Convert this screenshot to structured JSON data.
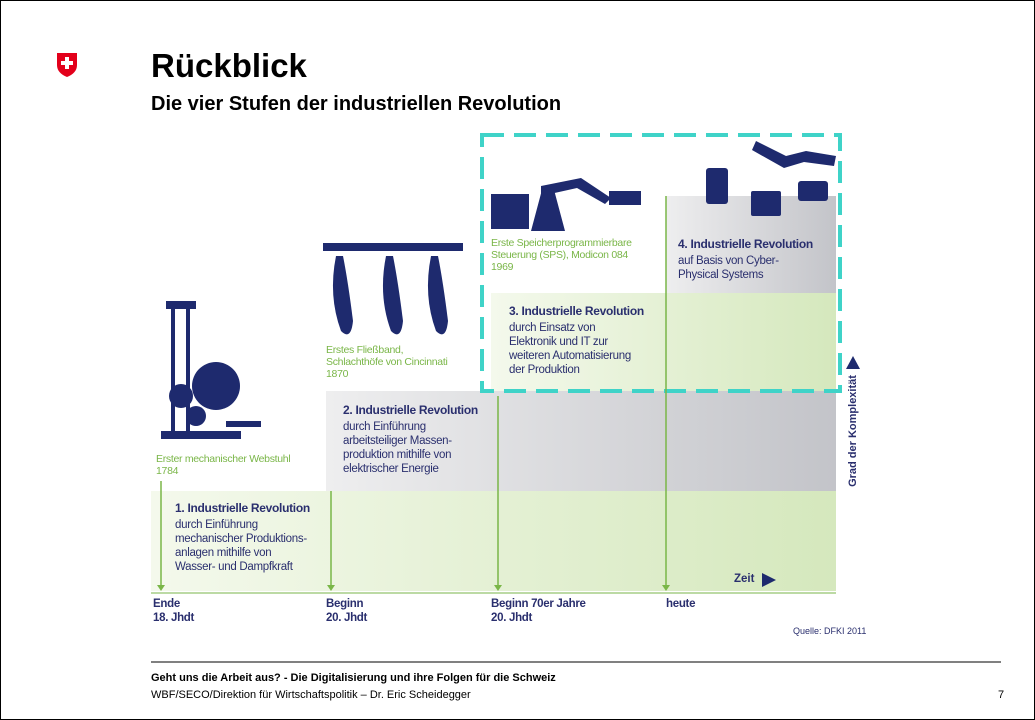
{
  "header": {
    "title": "Rückblick",
    "subtitle": "Die vier Stufen der industriellen Revolution"
  },
  "stages": [
    {
      "heading": "1. Industrielle Revolution",
      "description": [
        "durch Einführung",
        "mechanischer Produktions-",
        "anlagen mithilfe von",
        "Wasser- und Dampfkraft"
      ],
      "invention": [
        "Erster mechanischer Webstuhl",
        "1784"
      ],
      "era": [
        "Ende",
        "18. Jhdt"
      ]
    },
    {
      "heading": "2. Industrielle Revolution",
      "description": [
        "durch Einführung",
        "arbeitsteiliger Massen-",
        "produktion mithilfe von",
        "elektrischer Energie"
      ],
      "invention": [
        "Erstes Fließband,",
        "Schlachthöfe von Cincinnati",
        "1870"
      ],
      "era": [
        "Beginn",
        "20. Jhdt"
      ]
    },
    {
      "heading": "3. Industrielle Revolution",
      "description": [
        "durch Einsatz von",
        "Elektronik und IT zur",
        "weiteren Automatisierung",
        "der Produktion"
      ],
      "invention": [
        "Erste Speicherprogrammierbare",
        "Steuerung (SPS), Modicon 084",
        "1969"
      ],
      "era": [
        "Beginn 70er Jahre",
        "20. Jhdt"
      ]
    },
    {
      "heading": "4. Industrielle Revolution",
      "description": [
        "auf Basis von Cyber-",
        "Physical Systems"
      ],
      "invention": [],
      "era": [
        "heute"
      ]
    }
  ],
  "axes": {
    "x_label": "Zeit",
    "y_label": "Grad der Komplexität"
  },
  "source": "Quelle: DFKI 2011",
  "footer": {
    "title": "Geht uns die Arbeit aus? - Die Digitalisierung und ihre Folgen für die Schweiz",
    "author": "WBF/SECO/Direktion für Wirtschaftspolitik – Dr. Eric Scheidegger",
    "page": "7"
  }
}
